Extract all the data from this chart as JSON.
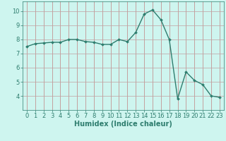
{
  "x": [
    0,
    1,
    2,
    3,
    4,
    5,
    6,
    7,
    8,
    9,
    10,
    11,
    12,
    13,
    14,
    15,
    16,
    17,
    18,
    19,
    20,
    21,
    22,
    23
  ],
  "y": [
    7.5,
    7.7,
    7.75,
    7.8,
    7.8,
    8.0,
    8.0,
    7.85,
    7.8,
    7.65,
    7.65,
    8.0,
    7.85,
    8.5,
    9.8,
    10.1,
    9.4,
    8.0,
    3.8,
    5.7,
    5.1,
    4.8,
    4.0,
    3.9
  ],
  "line_color": "#2e7d6e",
  "marker": "D",
  "marker_size": 2,
  "bg_color": "#cef5ef",
  "grid_color_h": "#c0a0a0",
  "grid_color_v": "#c08080",
  "xlabel": "Humidex (Indice chaleur)",
  "xlim": [
    -0.5,
    23.5
  ],
  "ylim": [
    3.0,
    10.7
  ],
  "yticks": [
    4,
    5,
    6,
    7,
    8,
    9,
    10
  ],
  "xticks": [
    0,
    1,
    2,
    3,
    4,
    5,
    6,
    7,
    8,
    9,
    10,
    11,
    12,
    13,
    14,
    15,
    16,
    17,
    18,
    19,
    20,
    21,
    22,
    23
  ],
  "xlabel_fontsize": 7,
  "tick_fontsize": 6,
  "line_width": 1.0
}
